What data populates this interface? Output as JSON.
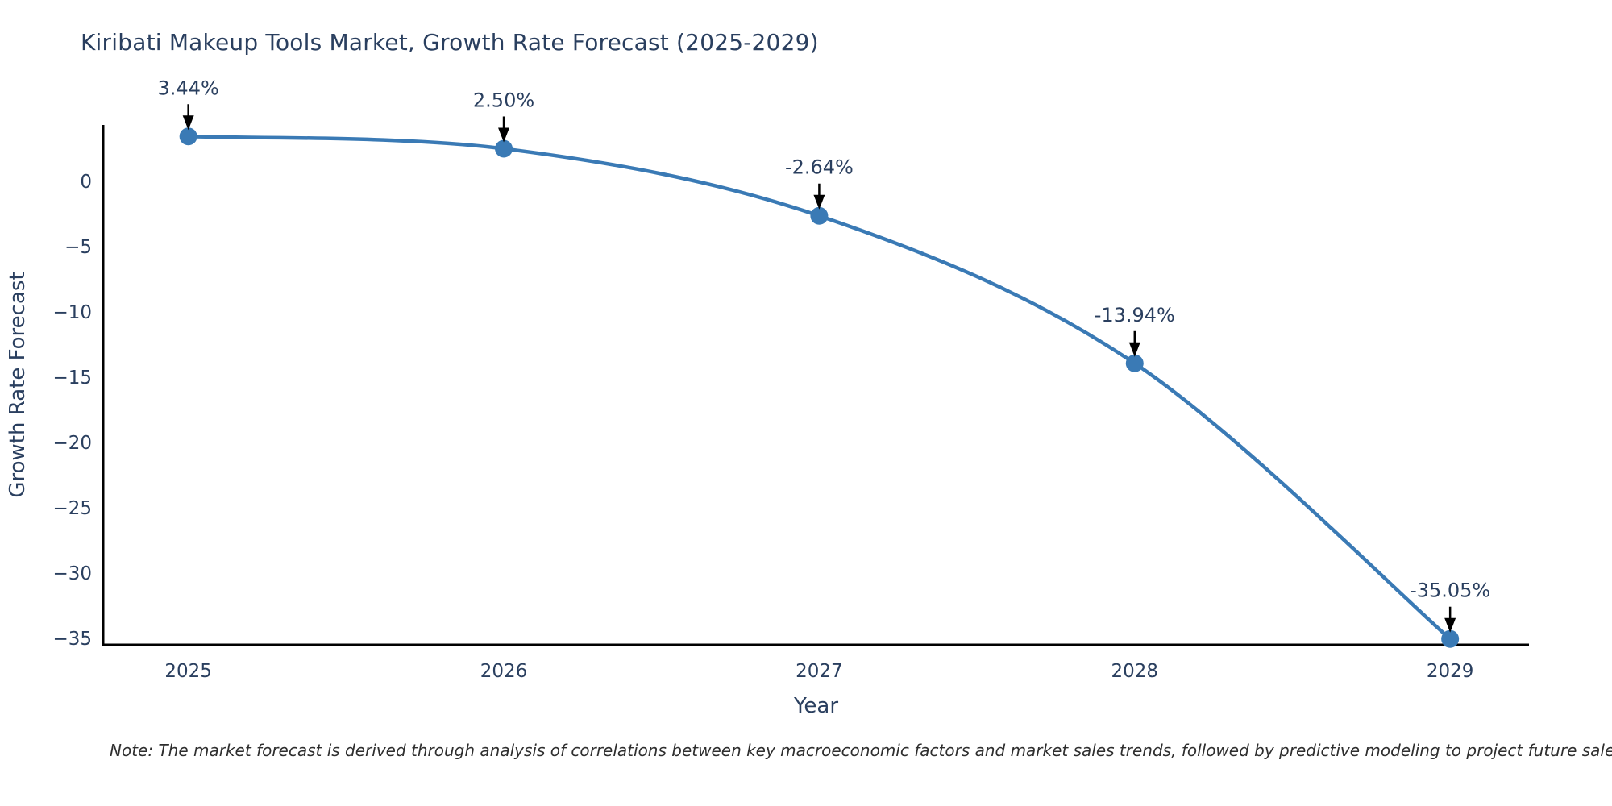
{
  "page": {
    "title": "Kiribati Makeup Tools Market, Growth Rate Forecast (2025-2029)",
    "note": "Note: The market forecast is derived through analysis of correlations between key macroeconomic factors and market sales trends, followed by predictive modeling to project future sales"
  },
  "chart_data": {
    "type": "line",
    "title": "Kiribati Makeup Tools Market, Growth Rate Forecast (2025-2029)",
    "xlabel": "Year",
    "ylabel": "Growth Rate Forecast",
    "x": [
      2025,
      2026,
      2027,
      2028,
      2029
    ],
    "values": [
      3.44,
      2.5,
      -2.64,
      -13.94,
      -35.05
    ],
    "labels": [
      "3.44%",
      "2.50%",
      "-2.64%",
      "-13.94%",
      "-35.05%"
    ],
    "xticks": [
      2025,
      2026,
      2027,
      2028,
      2029
    ],
    "yticks": [
      0,
      -5,
      -10,
      -15,
      -20,
      -25,
      -30,
      -35
    ],
    "xlim": [
      2024.73,
      2029.25
    ],
    "ylim": [
      -35.5,
      4.32
    ],
    "grid": false,
    "legend": false,
    "line_shape": "spline",
    "marker_style": "circle",
    "annotation_arrows": true,
    "colors": {
      "line": "#3a7ab5",
      "marker": "#3a7ab5",
      "axis": "#000000",
      "text": "#2a3f5f",
      "annotation_text": "#2a3f5f",
      "annotation_arrow": "#000000",
      "note_text": "#2e2e2e",
      "background": "#ffffff"
    }
  }
}
